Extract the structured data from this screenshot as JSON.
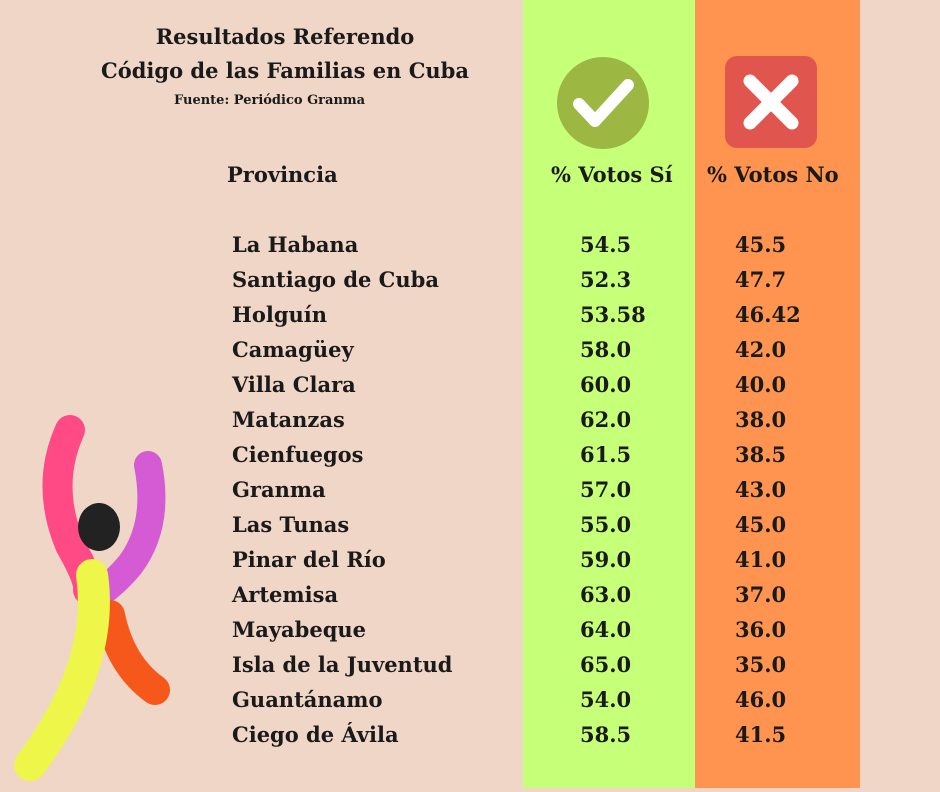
{
  "title_line1": "Resultados Referendo",
  "title_line2": "Código de las Familias en Cuba",
  "source": "Fuente: Periódico Granma",
  "headers": {
    "province": "Provincia",
    "yes": "% Votos Sí",
    "no": "% Votos No"
  },
  "icons": {
    "yes": "check-icon",
    "no": "x-icon"
  },
  "colors": {
    "background": "#f0d6c7",
    "yes_column": "#c6ff78",
    "no_column": "#ff9450",
    "yes_icon": "#9cb842",
    "no_icon": "#e0564e"
  },
  "chart_data": {
    "type": "table",
    "title": "Resultados Referendo Código de las Familias en Cuba",
    "columns": [
      "Provincia",
      "% Votos Sí",
      "% Votos No"
    ],
    "rows": [
      [
        "La Habana",
        "54.5",
        "45.5"
      ],
      [
        "Santiago de Cuba",
        "52.3",
        "47.7"
      ],
      [
        "Holguín",
        "53.58",
        "46.42"
      ],
      [
        "Camagüey",
        "58.0",
        "42.0"
      ],
      [
        "Villa Clara",
        "60.0",
        "40.0"
      ],
      [
        "Matanzas",
        "62.0",
        "38.0"
      ],
      [
        "Cienfuegos",
        "61.5",
        "38.5"
      ],
      [
        "Granma",
        "57.0",
        "43.0"
      ],
      [
        "Las Tunas",
        "55.0",
        "45.0"
      ],
      [
        "Pinar del Río",
        "59.0",
        "41.0"
      ],
      [
        "Artemisa",
        "63.0",
        "37.0"
      ],
      [
        "Mayabeque",
        "64.0",
        "36.0"
      ],
      [
        "Isla de la Juventud",
        "65.0",
        "35.0"
      ],
      [
        "Guantánamo",
        "54.0",
        "46.0"
      ],
      [
        "Ciego de Ávila",
        "58.5",
        "41.5"
      ]
    ]
  }
}
